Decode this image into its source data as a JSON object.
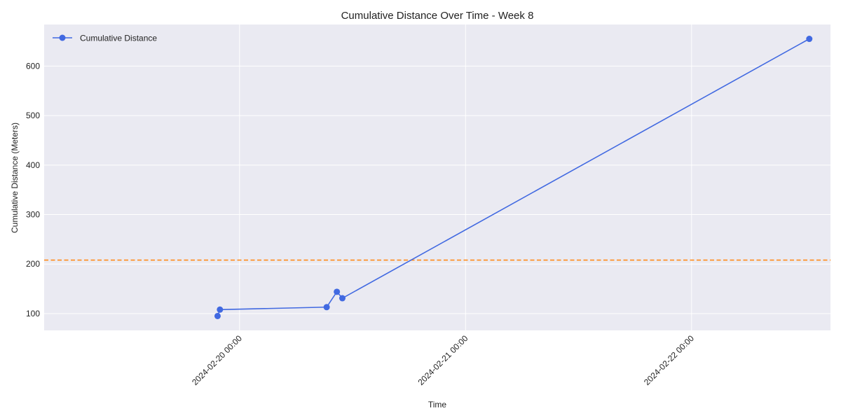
{
  "chart_data": {
    "type": "line",
    "title": "Cumulative Distance Over Time - Week 8",
    "xlabel": "Time",
    "ylabel": "Cumulative Distance (Meters)",
    "x_ticks": [
      "2024-02-20 00:00",
      "2024-02-21 00:00",
      "2024-02-22 00:00"
    ],
    "y_ticks": [
      100,
      200,
      300,
      400,
      500,
      600
    ],
    "xlim": [
      "2024-02-19 03:15",
      "2024-02-22 14:45"
    ],
    "ylim": [
      66,
      684
    ],
    "grid": true,
    "legend_position": "top-left",
    "series": [
      {
        "name": "Cumulative Distance",
        "color": "#4169E1",
        "marker": "circle",
        "points": [
          {
            "x": "2024-02-19 21:40",
            "y": 95
          },
          {
            "x": "2024-02-19 21:55",
            "y": 108
          },
          {
            "x": "2024-02-20 09:15",
            "y": 113
          },
          {
            "x": "2024-02-20 10:20",
            "y": 144
          },
          {
            "x": "2024-02-20 10:55",
            "y": 131
          },
          {
            "x": "2024-02-22 12:30",
            "y": 655
          }
        ]
      }
    ],
    "reference_line": {
      "y": 208,
      "style": "dashed",
      "color": "#FF8C1A"
    },
    "colors": {
      "plot_background": "#EAEAF2",
      "grid": "#FFFFFF"
    }
  }
}
